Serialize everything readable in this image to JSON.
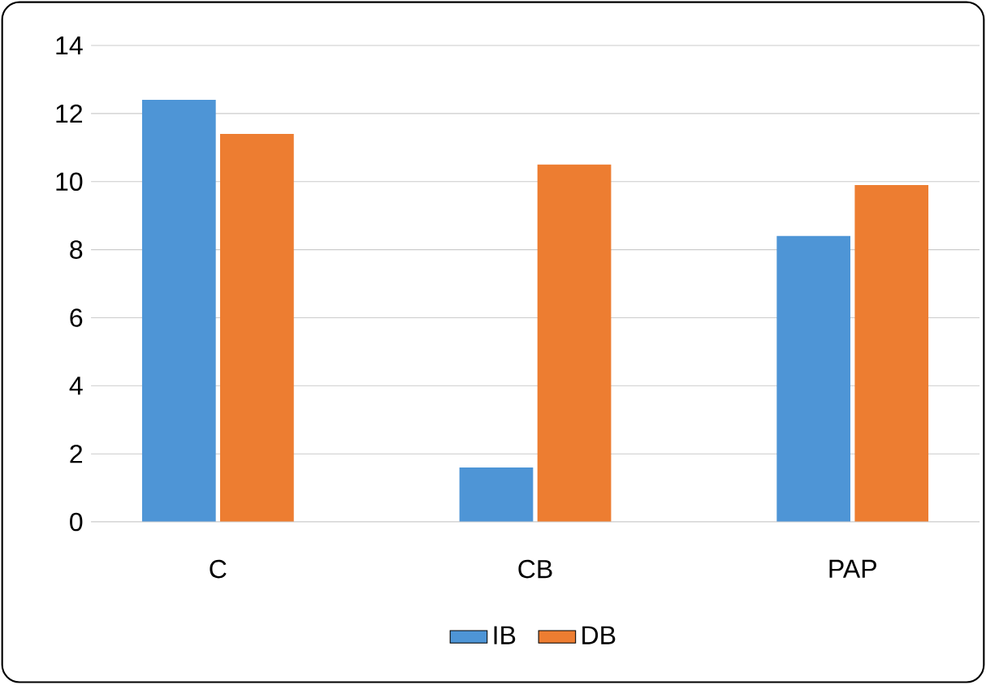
{
  "chart_data": {
    "type": "bar",
    "categories": [
      "C",
      "CB",
      "PAP"
    ],
    "series": [
      {
        "name": "IB",
        "color": "#4e95d6",
        "values": [
          12.4,
          1.6,
          8.4
        ]
      },
      {
        "name": "DB",
        "color": "#ed7d31",
        "values": [
          11.4,
          10.5,
          9.9
        ]
      }
    ],
    "ylim": [
      0,
      14
    ],
    "yticks": [
      0,
      2,
      4,
      6,
      8,
      10,
      12,
      14
    ],
    "grid": "y",
    "legend": "bottom"
  }
}
